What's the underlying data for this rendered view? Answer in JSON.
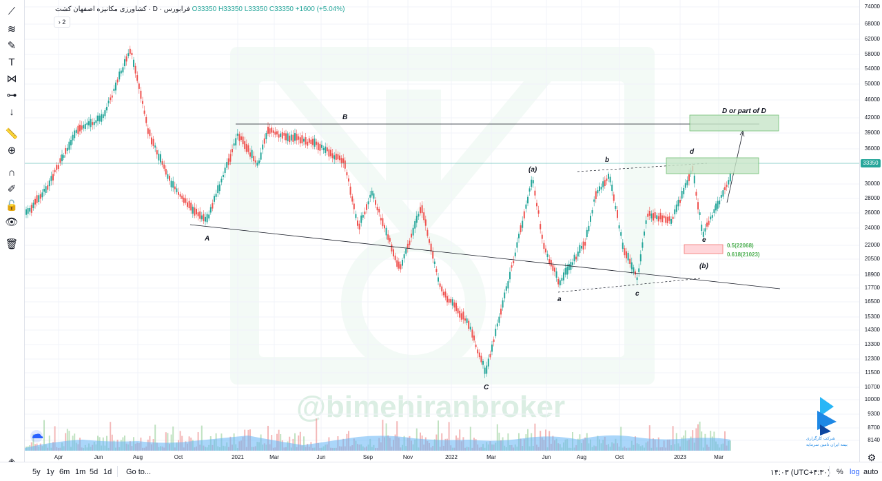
{
  "legend": {
    "title": "کشاورزی مکانیزه اصفهان کشت",
    "interval": "D",
    "exchange": "فرابورس",
    "open": "O33350",
    "high": "H33350",
    "low": "L33350",
    "close": "C33350",
    "change": "+1600 (+5.04%)",
    "collapse": "2"
  },
  "price_axis": {
    "labels": [
      "74000",
      "68000",
      "62000",
      "58000",
      "54000",
      "50000",
      "46000",
      "42000",
      "39000",
      "36000",
      "33350",
      "30000",
      "28000",
      "26000",
      "24000",
      "22000",
      "20500",
      "18900",
      "17700",
      "16500",
      "15300",
      "14300",
      "13300",
      "12300",
      "11500",
      "10700",
      "10000",
      "9300",
      "8700",
      "8140"
    ],
    "last_price": "33350"
  },
  "time_axis": [
    "Apr",
    "Jun",
    "Aug",
    "Oct",
    "2021",
    "Mar",
    "Jun",
    "Sep",
    "Nov",
    "2022",
    "Mar",
    "Jun",
    "Aug",
    "Oct",
    "2023",
    "Mar"
  ],
  "annotations": {
    "B": "B",
    "A": "A",
    "C": "C",
    "paren_a": "(a)",
    "b_small": "b",
    "a_small": "a",
    "c_small": "c",
    "d_small": "d",
    "e_small": "e",
    "paren_b": "(b)",
    "target": "D or part of D",
    "fib1": "0.5(22068)",
    "fib2": "0.618(21023)"
  },
  "watermark": "@bimehiranbroker",
  "broker_logo": {
    "line1": "شرکت کارگزاری",
    "line2": "بیمه ایران تامین سرمایه"
  },
  "bottom_bar": {
    "ranges": [
      "5y",
      "1y",
      "6m",
      "1m",
      "5d",
      "1d"
    ],
    "goto": "Go to...",
    "clock": "۱۴:۰۳ (UTC+۴:۳۰)",
    "percent": "%",
    "log": "log",
    "auto": "auto"
  },
  "colors": {
    "up": "#26a69a",
    "down": "#ef5350",
    "accent": "#2962ff",
    "zone_green": "#c8e6c9",
    "zone_red": "#ffcdd2"
  },
  "chart_data": {
    "type": "candlestick",
    "scale": "log",
    "last": 33350,
    "swing_points": [
      {
        "label": "A",
        "time": "2020-11",
        "price": 24500
      },
      {
        "label": "B",
        "time": "2021-01",
        "price": 41000
      },
      {
        "label": "C",
        "time": "2022-02",
        "price": 11300
      },
      {
        "label": "(a)",
        "time": "2022-05",
        "price": 31000
      },
      {
        "label": "a",
        "time": "2022-07",
        "price": 17700
      },
      {
        "label": "b",
        "time": "2022-09",
        "price": 32000
      },
      {
        "label": "c",
        "time": "2022-11",
        "price": 18900
      },
      {
        "label": "d",
        "time": "2023-01",
        "price": 33000
      },
      {
        "label": "e",
        "time": "2023-02",
        "price": 22000
      }
    ]
  }
}
